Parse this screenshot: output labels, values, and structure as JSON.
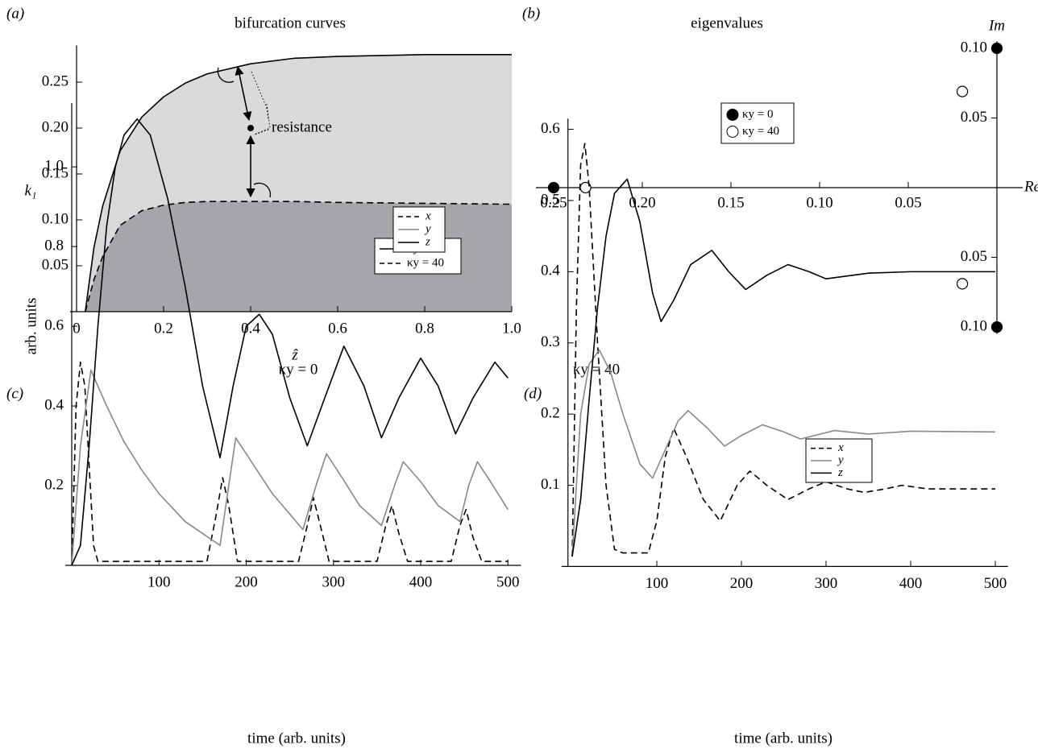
{
  "chart_data": [
    {
      "type": "line",
      "panel": "(a)",
      "title": "bifurcation curves",
      "xlabel": "ẑ",
      "ylabel": "k₁",
      "xlim": [
        0,
        1
      ],
      "ylim": [
        0,
        0.29
      ],
      "xticks": [
        0,
        0.2,
        0.4,
        0.6,
        0.8,
        {
          "value": 1,
          "label": "1.0"
        }
      ],
      "yticks": [
        0.05,
        {
          "value": 0.1,
          "label": "0.10"
        },
        0.15,
        {
          "value": 0.2,
          "label": "0.20"
        },
        0.25
      ],
      "series": [
        {
          "name": "κy = 0",
          "color": "#000000",
          "dash": false,
          "fill": "#d9dadc",
          "x": [
            0.02,
            0.04,
            0.06,
            0.1,
            0.15,
            0.2,
            0.25,
            0.3,
            0.4,
            0.5,
            0.6,
            0.8,
            1.0
          ],
          "values": [
            0,
            0.07,
            0.115,
            0.175,
            0.212,
            0.234,
            0.249,
            0.259,
            0.27,
            0.276,
            0.278,
            0.28,
            0.28
          ]
        },
        {
          "name": "κy = 40",
          "color": "#000000",
          "dash": true,
          "fill": "#a5a6a9",
          "x": [
            0.02,
            0.04,
            0.06,
            0.1,
            0.15,
            0.2,
            0.25,
            0.3,
            0.4,
            0.5,
            0.6,
            0.8,
            1.0
          ],
          "values": [
            0,
            0.035,
            0.06,
            0.094,
            0.11,
            0.116,
            0.119,
            0.12,
            0.12,
            0.12,
            0.119,
            0.118,
            0.117
          ]
        }
      ],
      "annotation": {
        "text": "resistance",
        "x": 0.4,
        "y": 0.2
      }
    },
    {
      "type": "scatter",
      "panel": "(b)",
      "title": "eigenvalues",
      "xlabel": "Re",
      "ylabel": "Im",
      "xlim": [
        -0.26,
        0.01
      ],
      "ylim": [
        -0.105,
        0.105
      ],
      "xticks": [
        {
          "value": -0.25,
          "label": "0.25"
        },
        {
          "value": -0.2,
          "label": "0.20"
        },
        {
          "value": -0.15,
          "label": "0.15"
        },
        {
          "value": -0.1,
          "label": "0.10"
        },
        {
          "value": -0.05,
          "label": "0.05"
        }
      ],
      "yticks": [
        {
          "value": -0.1,
          "label": "0.10"
        },
        {
          "value": -0.05,
          "label": "0.05"
        },
        {
          "value": 0.05,
          "label": "0.05"
        },
        {
          "value": 0.1,
          "label": "0.10"
        }
      ],
      "series": [
        {
          "name": "κy = 0",
          "color": "#000000",
          "filled": true,
          "x": [
            -0.25,
            0,
            0
          ],
          "values": [
            0,
            0.1,
            -0.1
          ]
        },
        {
          "name": "κy = 40",
          "color": "#000000",
          "filled": false,
          "x": [
            -0.232,
            -0.0195,
            -0.0195
          ],
          "values": [
            0,
            0.069,
            -0.069
          ]
        }
      ]
    },
    {
      "type": "line",
      "panel": "(c)",
      "title": "κy = 0",
      "xlabel": "time (arb. units)",
      "ylabel": "arb. units",
      "xlim": [
        0,
        515
      ],
      "ylim": [
        0,
        1.16
      ],
      "xticks": [
        100,
        200,
        300,
        400,
        500
      ],
      "yticks": [
        0.2,
        0.4,
        0.6,
        0.8,
        {
          "value": 1,
          "label": "1.0"
        }
      ],
      "series": [
        {
          "name": "x",
          "color": "#000000",
          "dash": true,
          "x": [
            0,
            5,
            10,
            15,
            20,
            25,
            30,
            155,
            165,
            173,
            180,
            190,
            260,
            270,
            277,
            285,
            295,
            350,
            360,
            367,
            375,
            385,
            435,
            445,
            452,
            460,
            470,
            500
          ],
          "values": [
            0,
            0.4,
            0.51,
            0.45,
            0.25,
            0.05,
            0.01,
            0.01,
            0.12,
            0.22,
            0.15,
            0.01,
            0.01,
            0.1,
            0.17,
            0.1,
            0.01,
            0.01,
            0.1,
            0.15,
            0.08,
            0.01,
            0.01,
            0.1,
            0.14,
            0.07,
            0.01,
            0.01
          ]
        },
        {
          "name": "y",
          "color": "#888888",
          "dash": false,
          "x": [
            0,
            10,
            22,
            40,
            60,
            80,
            100,
            130,
            170,
            180,
            188,
            200,
            230,
            265,
            280,
            292,
            310,
            330,
            355,
            370,
            380,
            400,
            420,
            445,
            455,
            465,
            480,
            500
          ],
          "values": [
            0,
            0.3,
            0.49,
            0.4,
            0.31,
            0.24,
            0.18,
            0.11,
            0.05,
            0.2,
            0.32,
            0.28,
            0.18,
            0.09,
            0.2,
            0.28,
            0.22,
            0.15,
            0.1,
            0.2,
            0.26,
            0.21,
            0.15,
            0.11,
            0.2,
            0.26,
            0.21,
            0.14
          ]
        },
        {
          "name": "z",
          "color": "#000000",
          "dash": false,
          "x": [
            0,
            10,
            20,
            30,
            40,
            50,
            60,
            75,
            90,
            110,
            130,
            150,
            170,
            185,
            200,
            215,
            230,
            250,
            270,
            290,
            312,
            335,
            355,
            375,
            400,
            420,
            440,
            460,
            485,
            500
          ],
          "values": [
            0,
            0.05,
            0.3,
            0.6,
            0.85,
            1.0,
            1.08,
            1.12,
            1.08,
            0.92,
            0.7,
            0.45,
            0.27,
            0.45,
            0.6,
            0.63,
            0.58,
            0.42,
            0.3,
            0.42,
            0.55,
            0.45,
            0.32,
            0.42,
            0.52,
            0.45,
            0.33,
            0.42,
            0.51,
            0.47
          ]
        }
      ]
    },
    {
      "type": "line",
      "panel": "(d)",
      "title": "κy = 40",
      "xlabel": "time (arb. units)",
      "xlim": [
        -5,
        515
      ],
      "ylim": [
        -0.014,
        0.615
      ],
      "xticks": [
        100,
        200,
        300,
        400,
        500
      ],
      "yticks": [
        0.1,
        0.2,
        0.3,
        0.4,
        0.5,
        0.6
      ],
      "series": [
        {
          "name": "x",
          "color": "#000000",
          "dash": true,
          "x": [
            0,
            5,
            10,
            15,
            20,
            30,
            40,
            50,
            60,
            90,
            100,
            110,
            120,
            135,
            155,
            175,
            195,
            210,
            230,
            255,
            280,
            300,
            325,
            345,
            370,
            390,
            420,
            450,
            500
          ],
          "values": [
            0,
            0.35,
            0.55,
            0.58,
            0.52,
            0.3,
            0.1,
            0.01,
            0.005,
            0.005,
            0.05,
            0.14,
            0.18,
            0.14,
            0.08,
            0.05,
            0.1,
            0.12,
            0.1,
            0.08,
            0.095,
            0.105,
            0.095,
            0.09,
            0.095,
            0.1,
            0.095,
            0.095,
            0.095
          ]
        },
        {
          "name": "y",
          "color": "#888888",
          "dash": false,
          "x": [
            0,
            10,
            20,
            32,
            45,
            60,
            80,
            95,
            110,
            125,
            137,
            160,
            180,
            200,
            225,
            250,
            270,
            310,
            350,
            400,
            500
          ],
          "values": [
            0,
            0.2,
            0.27,
            0.29,
            0.26,
            0.2,
            0.13,
            0.11,
            0.15,
            0.19,
            0.205,
            0.18,
            0.155,
            0.17,
            0.185,
            0.175,
            0.165,
            0.177,
            0.172,
            0.176,
            0.175
          ]
        },
        {
          "name": "z",
          "color": "#000000",
          "dash": false,
          "x": [
            0,
            10,
            20,
            30,
            40,
            50,
            65,
            80,
            95,
            105,
            120,
            140,
            165,
            185,
            205,
            230,
            255,
            280,
            300,
            350,
            400,
            450,
            500
          ],
          "values": [
            0,
            0.08,
            0.22,
            0.35,
            0.45,
            0.51,
            0.53,
            0.47,
            0.37,
            0.33,
            0.36,
            0.41,
            0.43,
            0.4,
            0.375,
            0.395,
            0.41,
            0.4,
            0.39,
            0.398,
            0.4,
            0.4,
            0.4
          ]
        }
      ]
    }
  ]
}
